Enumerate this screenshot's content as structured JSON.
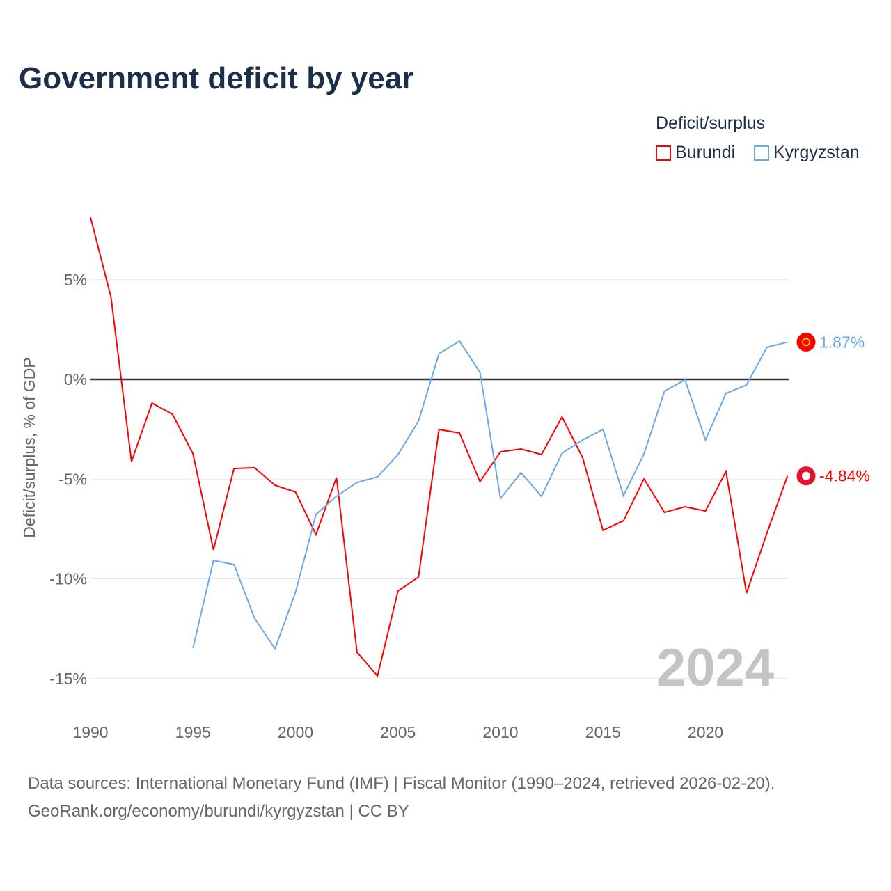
{
  "title": "Government deficit by year",
  "legend": {
    "title": "Deficit/surplus",
    "items": [
      {
        "label": "Burundi",
        "color": "#ff0000"
      },
      {
        "label": "Kyrgyzstan",
        "color": "#6aa8e8"
      }
    ]
  },
  "footer": {
    "line1": "Data sources: International Monetary Fund (IMF) | Fiscal Monitor (1990–2024, retrieved 2026-02-20).",
    "line2": "GeoRank.org/economy/burundi/kyrgyzstan | CC BY"
  },
  "chart_data": {
    "type": "line",
    "title": "Government deficit by year",
    "ylabel": "Deficit/surplus, % of GDP",
    "xlabel": "",
    "xlim": [
      1990,
      2024
    ],
    "ylim": [
      -16.5,
      9
    ],
    "xticks": [
      {
        "v": 1990,
        "label": "1990"
      },
      {
        "v": 1995,
        "label": "1995"
      },
      {
        "v": 2000,
        "label": "2000"
      },
      {
        "v": 2005,
        "label": "2005"
      },
      {
        "v": 2010,
        "label": "2010"
      },
      {
        "v": 2015,
        "label": "2015"
      },
      {
        "v": 2020,
        "label": "2020"
      }
    ],
    "yticks": [
      {
        "v": 5,
        "label": "5%"
      },
      {
        "v": 0,
        "label": "0%"
      },
      {
        "v": -5,
        "label": "-5%"
      },
      {
        "v": -10,
        "label": "-10%"
      },
      {
        "v": -15,
        "label": "-15%"
      }
    ],
    "watermark": "2024",
    "series": [
      {
        "name": "Burundi",
        "color": "#ff0000",
        "end_label": "-4.84%",
        "x_start": 1990,
        "values": [
          8.13,
          4.12,
          -4.12,
          -1.19,
          -1.75,
          -3.73,
          -8.55,
          -4.47,
          -4.43,
          -5.31,
          -5.65,
          -7.78,
          -4.92,
          -13.68,
          -14.87,
          -10.61,
          -9.91,
          -2.51,
          -2.69,
          -5.13,
          -3.63,
          -3.49,
          -3.77,
          -1.88,
          -3.91,
          -7.57,
          -7.09,
          -4.99,
          -6.67,
          -6.39,
          -6.6,
          -4.61,
          -10.72,
          -7.7,
          -4.84
        ]
      },
      {
        "name": "Kyrgyzstan",
        "color": "#6aa8e8",
        "end_label": "1.87%",
        "x_start": 1995,
        "values": [
          -13.47,
          -9.08,
          -9.28,
          -11.97,
          -13.51,
          -10.68,
          -6.77,
          -5.86,
          -5.17,
          -4.89,
          -3.77,
          -2.09,
          1.29,
          1.92,
          0.35,
          -5.97,
          -4.68,
          -5.86,
          -3.7,
          -3.04,
          -2.51,
          -5.83,
          -3.73,
          -0.59,
          -0.03,
          -3.04,
          -0.7,
          -0.28,
          1.61,
          1.87
        ]
      }
    ]
  }
}
